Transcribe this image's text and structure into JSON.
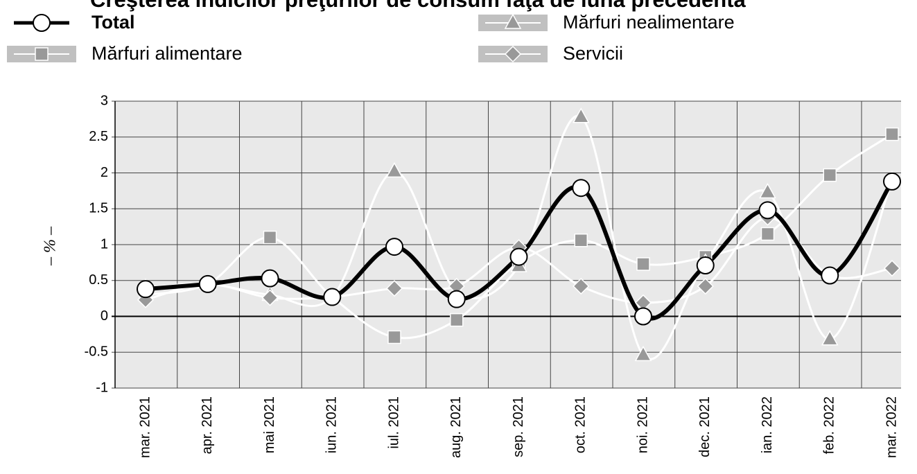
{
  "chart_data": {
    "type": "line",
    "title": "Creşterea indicilor preţurilor de consum faţă de luna precedentă",
    "y_label": "– % –",
    "categories": [
      "mar. 2021",
      "apr. 2021",
      "mai 2021",
      "iun. 2021",
      "iul. 2021",
      "aug. 2021",
      "sep. 2021",
      "oct. 2021",
      "noi. 2021",
      "dec. 2021",
      "ian. 2022",
      "feb. 2022",
      "mar. 2022"
    ],
    "series": [
      {
        "name": "Total",
        "color": "#000000",
        "marker": "circle",
        "marker_color": "#ffffff",
        "values": [
          0.38,
          0.45,
          0.53,
          0.27,
          0.97,
          0.24,
          0.83,
          1.79,
          0.0,
          0.71,
          1.48,
          0.57,
          1.88
        ]
      },
      {
        "name": "Mărfuri alimentare",
        "color": "#ffffff",
        "marker": "square",
        "marker_color": "#999999",
        "values": [
          0.3,
          0.45,
          1.1,
          0.27,
          -0.29,
          -0.05,
          0.75,
          1.06,
          0.73,
          0.83,
          1.15,
          1.97,
          2.54
        ]
      },
      {
        "name": "Mărfuri nealimentare",
        "color": "#ffffff",
        "marker": "triangle",
        "marker_color": "#999999",
        "values": [
          0.4,
          0.45,
          0.3,
          0.27,
          2.02,
          0.35,
          0.7,
          2.78,
          -0.54,
          0.75,
          1.73,
          -0.32,
          1.9
        ]
      },
      {
        "name": "Servicii",
        "color": "#ffffff",
        "marker": "diamond",
        "marker_color": "#999999",
        "values": [
          0.23,
          0.45,
          0.26,
          0.27,
          0.39,
          0.42,
          0.96,
          0.42,
          0.19,
          0.42,
          1.38,
          0.57,
          0.67
        ]
      }
    ],
    "ylim": [
      -1,
      3
    ],
    "yticks": [
      -1,
      -0.5,
      0,
      0.5,
      1,
      1.5,
      2,
      2.5,
      3
    ],
    "grid": true
  }
}
